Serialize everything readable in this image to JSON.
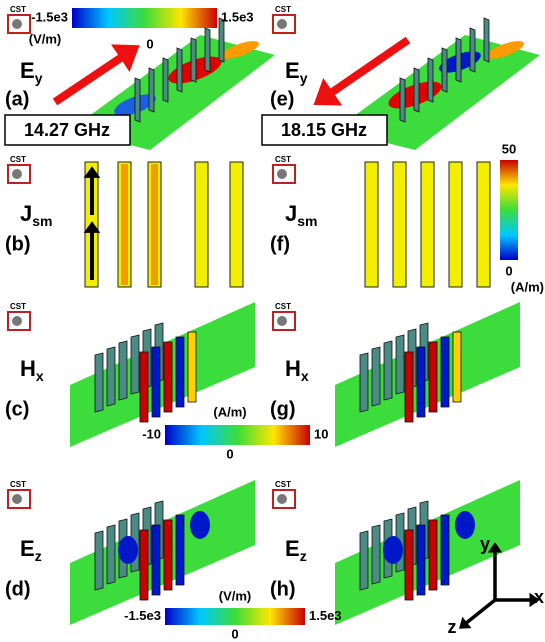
{
  "panels": [
    {
      "label": "(a)",
      "field": "E",
      "sub": "y",
      "logo": "CST"
    },
    {
      "label": "(b)",
      "field": "J",
      "sub": "sm",
      "logo": "CST"
    },
    {
      "label": "(c)",
      "field": "H",
      "sub": "x",
      "logo": "CST"
    },
    {
      "label": "(d)",
      "field": "E",
      "sub": "z",
      "logo": "CST"
    },
    {
      "label": "(e)",
      "field": "E",
      "sub": "y",
      "logo": "CST"
    },
    {
      "label": "(f)",
      "field": "J",
      "sub": "sm",
      "logo": "CST"
    },
    {
      "label": "(g)",
      "field": "H",
      "sub": "x",
      "logo": "CST"
    },
    {
      "label": "(h)",
      "field": "E",
      "sub": "z",
      "logo": "CST"
    }
  ],
  "frequencies": [
    "14.27 GHz",
    "18.15 GHz"
  ],
  "colorbars": [
    {
      "unit": "(V/m)",
      "min": "-1.5e3",
      "mid": "0",
      "max": "1.5e3"
    },
    {
      "unit": "(A/m)",
      "min": "0",
      "max": "50"
    },
    {
      "unit": "(A/m)",
      "min": "-10",
      "mid": "0",
      "max": "10"
    },
    {
      "unit": "(V/m)",
      "min": "-1.5e3",
      "mid": "0",
      "max": "1.5e3"
    }
  ],
  "axes": {
    "x": "x",
    "y": "y",
    "z": "z"
  }
}
